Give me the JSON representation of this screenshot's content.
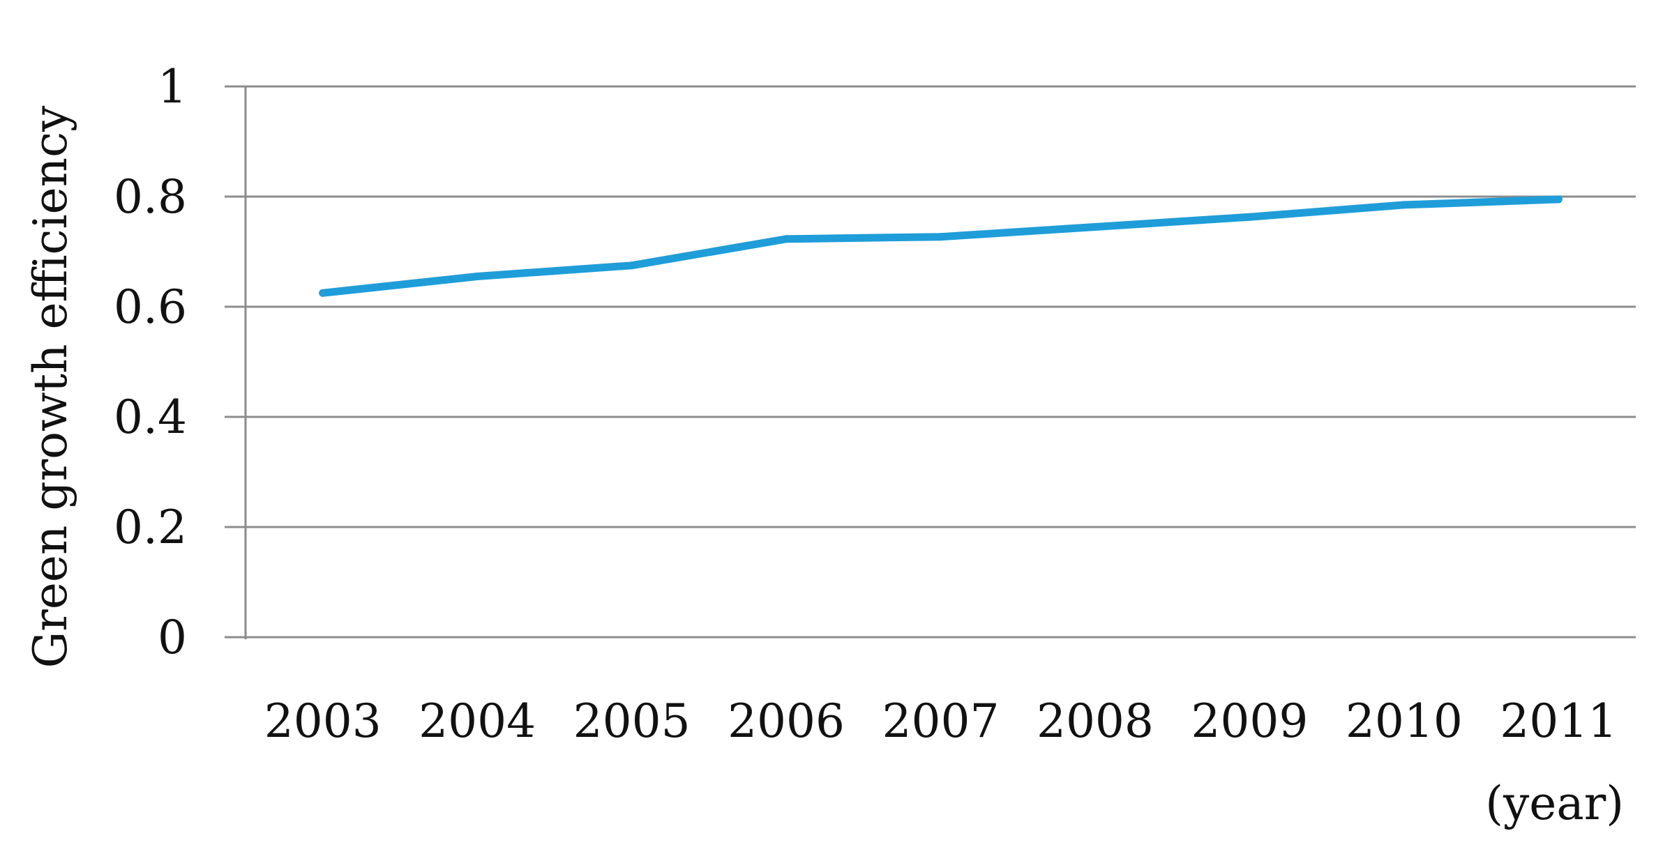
{
  "chart_data": {
    "type": "line",
    "title": "",
    "xlabel": "(year)",
    "ylabel": "Green growth efficiency",
    "categories": [
      "2003",
      "2004",
      "2005",
      "2006",
      "2007",
      "2008",
      "2009",
      "2010",
      "2011"
    ],
    "series": [
      {
        "values": [
          0.625,
          0.655,
          0.675,
          0.723,
          0.727,
          0.745,
          0.763,
          0.785,
          0.795
        ],
        "color": "#1f9dd9"
      }
    ],
    "ylim": [
      0,
      1
    ],
    "yticks": [
      "0",
      "0.2",
      "0.4",
      "0.6",
      "0.8",
      "1"
    ],
    "grid": true,
    "legend": "none",
    "gridline_color": "#8c8c8c"
  }
}
